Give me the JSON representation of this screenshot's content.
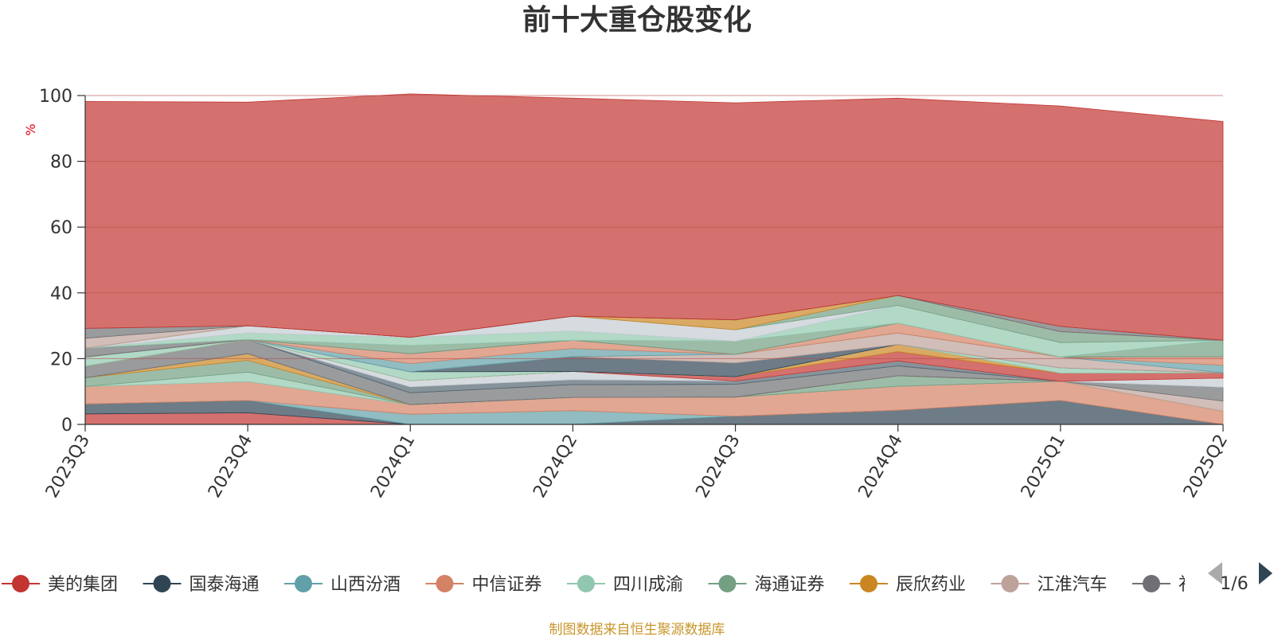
{
  "chart_data": {
    "type": "area",
    "stacked": true,
    "title": "前十大重仓股变化",
    "ylabel": "%",
    "ylim": [
      0,
      100
    ],
    "yticks": [
      0,
      20,
      40,
      60,
      80,
      100
    ],
    "grid": true,
    "legend_position": "bottom",
    "x": [
      "2023Q3",
      "2023Q4",
      "2024Q1",
      "2024Q2",
      "2024Q3",
      "2024Q4",
      "2025Q1",
      "2025Q2"
    ],
    "series": [
      {
        "name": "美的集团",
        "color": "#c23531",
        "values": [
          3.2,
          3.5,
          0,
          0,
          0,
          0,
          0,
          0
        ]
      },
      {
        "name": "国泰海通",
        "color": "#2f4554",
        "values": [
          3.0,
          3.8,
          0,
          0,
          2.5,
          4.3,
          7.3,
          0
        ]
      },
      {
        "name": "山西汾酒",
        "color": "#61a0a8",
        "values": [
          0,
          0,
          3.1,
          4.2,
          0,
          0,
          0,
          0
        ]
      },
      {
        "name": "中信证券",
        "color": "#d48265",
        "values": [
          5.3,
          5.7,
          2.9,
          4.0,
          5.8,
          7.3,
          5.8,
          4.0
        ]
      },
      {
        "name": "四川成渝",
        "color": "#91c7ae",
        "values": [
          0,
          2.9,
          0,
          0,
          0,
          0,
          0,
          0
        ]
      },
      {
        "name": "海通证券",
        "color": "#749f83",
        "values": [
          2.7,
          3.6,
          0,
          0,
          0,
          3.2,
          0,
          0
        ]
      },
      {
        "name": "辰欣药业",
        "color": "#ca8622",
        "values": [
          0,
          2.0,
          0,
          0,
          0,
          0,
          0,
          0
        ]
      },
      {
        "name": "江淮汽车",
        "color": "#bda29a",
        "values": [
          0,
          0,
          0,
          0,
          0,
          0,
          0,
          3.1
        ]
      },
      {
        "name": "",
        "color": "#6e7074",
        "values": [
          3.5,
          4.3,
          3.6,
          3.9,
          3.9,
          3.0,
          0,
          4.2
        ]
      },
      {
        "name": "",
        "color": "#546570",
        "values": [
          0,
          0,
          1.8,
          1.5,
          1.0,
          1.5,
          0,
          0
        ]
      },
      {
        "name": "",
        "color": "#c4ccd3",
        "values": [
          0,
          0,
          1.9,
          2.5,
          0,
          0,
          0,
          2.8
        ]
      },
      {
        "name": "",
        "color": "#c23531",
        "values": [
          0,
          0,
          0,
          0,
          1.3,
          2.8,
          2.5,
          1.6
        ]
      },
      {
        "name": "",
        "color": "#ca8622",
        "values": [
          0,
          0,
          0,
          0,
          0,
          2.2,
          0,
          0
        ]
      },
      {
        "name": "",
        "color": "#91c7ae",
        "values": [
          2.8,
          0,
          2.7,
          0,
          0,
          0,
          1.6,
          0
        ]
      },
      {
        "name": "",
        "color": "#2f4554",
        "values": [
          0,
          0,
          0,
          4.5,
          4.2,
          0,
          0,
          0
        ]
      },
      {
        "name": "",
        "color": "#bda29a",
        "values": [
          0,
          0,
          0,
          0,
          2.6,
          3.5,
          3.3,
          0
        ]
      },
      {
        "name": "",
        "color": "#61a0a8",
        "values": [
          0,
          0,
          2.5,
          2.5,
          0,
          0,
          0,
          2.3
        ]
      },
      {
        "name": "",
        "color": "#d48265",
        "values": [
          0,
          0,
          3.0,
          2.5,
          0,
          3.0,
          0,
          2.6
        ]
      },
      {
        "name": "",
        "color": "#6e7074",
        "values": [
          2.7,
          0,
          0,
          0,
          0,
          0,
          0,
          0
        ]
      },
      {
        "name": "",
        "color": "#749f83",
        "values": [
          0,
          0,
          2.5,
          0,
          4.0,
          0,
          0,
          5.0
        ]
      },
      {
        "name": "",
        "color": "#91c7ae",
        "values": [
          0,
          2.0,
          2.5,
          2.8,
          0,
          5.4,
          4.4,
          0
        ]
      },
      {
        "name": "",
        "color": "#c4ccd3",
        "values": [
          0,
          2.2,
          0,
          4.5,
          3.5,
          0,
          0,
          0
        ]
      },
      {
        "name": "",
        "color": "#749f83",
        "values": [
          0,
          0,
          0,
          0,
          0,
          3.0,
          3.3,
          0
        ]
      },
      {
        "name": "",
        "color": "#ca8622",
        "values": [
          0,
          0,
          0,
          0,
          3.0,
          0,
          0,
          0
        ]
      },
      {
        "name": "",
        "color": "#bda29a",
        "values": [
          3.0,
          0,
          0,
          0,
          0,
          0,
          0,
          0
        ]
      },
      {
        "name": "",
        "color": "#6e7074",
        "values": [
          3.0,
          0,
          0,
          0,
          0,
          0,
          1.6,
          0
        ]
      },
      {
        "name": "",
        "color": "#c23531",
        "values": [
          69.0,
          68.0,
          74.0,
          66.3,
          66.0,
          60.0,
          67.0,
          66.5
        ]
      }
    ],
    "legend": {
      "visible_items": [
        "美的集团",
        "国泰海通",
        "山西汾酒",
        "中信证券",
        "四川成渝",
        "海通证券",
        "辰欣药业",
        "江淮汽车",
        "补"
      ],
      "colors": [
        "#c23531",
        "#2f4554",
        "#61a0a8",
        "#d48265",
        "#91c7ae",
        "#749f83",
        "#ca8622",
        "#bda29a",
        "#6e7074"
      ],
      "page": "1/6"
    },
    "source_note": "制图数据来自恒生聚源数据库"
  }
}
